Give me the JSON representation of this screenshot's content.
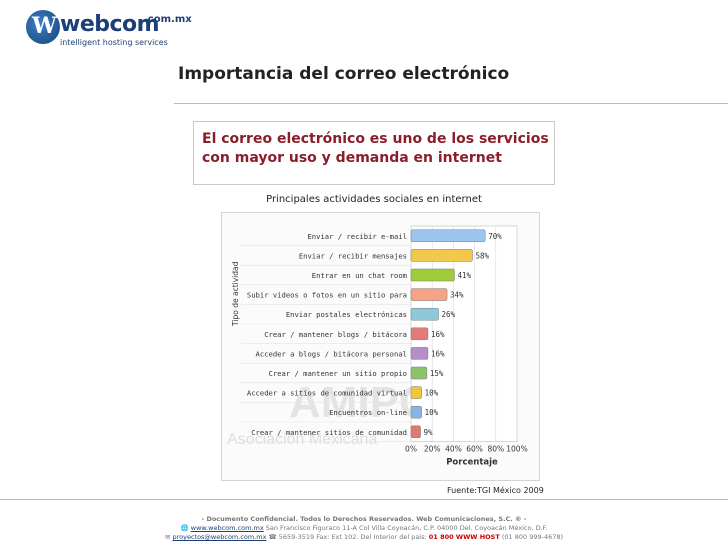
{
  "logo": {
    "word": "webcom",
    "suffix": ".com.mx",
    "tagline": "intelligent hosting services"
  },
  "page_title": "Importancia del correo electrónico",
  "callout": {
    "line1": "El correo electrónico es uno de los servicios",
    "line2": "con mayor uso y demanda en internet"
  },
  "watermark": {
    "big": "AMIPCI",
    "sub": "Asociación Mexicana"
  },
  "source": "Fuente:TGI México 2009",
  "footer": {
    "line1": "- Documento Confidencial. Todos lo Derechos Reservados. Web Comunicaciones, S.C. ® -",
    "link1": "www.webcom.com.mx",
    "address": "San Francisco Figuraco 11-A Col Villa Coyoacán, C.P. 04000 Del. Coyoacán México, D.F.",
    "email": "proyectos@webcom.com.mx",
    "phones": "5659-3519  Fax: Ext 102. Del Interior del  país:",
    "hotline": "01 800 WWW HOST",
    "hotline_num": "(01 800 999-4678)"
  },
  "colors": {
    "accent": "#8a1f2a",
    "brand": "#1c3f78"
  },
  "chart_data": {
    "type": "bar",
    "orientation": "horizontal",
    "title": "Principales actividades sociales en internet",
    "xlabel": "Porcentaje",
    "ylabel": "Tipo de actividad",
    "xlim": [
      0,
      100
    ],
    "x_ticks": [
      "0%",
      "20%",
      "40%",
      "60%",
      "80%",
      "100%"
    ],
    "categories": [
      "Enviar / recibir e-mail",
      "Enviar / recibir mensajes",
      "Entrar en un chat room",
      "Subir videos o fotos en un sitio para",
      "Enviar postales electrónicas",
      "Crear / mantener blogs / bitácora",
      "Acceder a blogs / bitácora personal",
      "Crear / mantener un sitio propio",
      "Acceder a sitios de comunidad virtual",
      "Encuentros on-line",
      "Crear / mantener sitios de comunidad"
    ],
    "values": [
      70,
      58,
      41,
      34,
      26,
      16,
      16,
      15,
      10,
      10,
      9
    ],
    "value_labels": [
      "70%",
      "58%",
      "41%",
      "34%",
      "26%",
      "16%",
      "16%",
      "15%",
      "10%",
      "10%",
      "9%"
    ],
    "bar_colors": [
      "#9cc6ee",
      "#f2c94c",
      "#9fcc3b",
      "#f4a484",
      "#8fc8d8",
      "#e57a7a",
      "#b48ec9",
      "#8cc36a",
      "#f0c63a",
      "#86b4e4",
      "#e07a6e"
    ],
    "grid": true
  }
}
